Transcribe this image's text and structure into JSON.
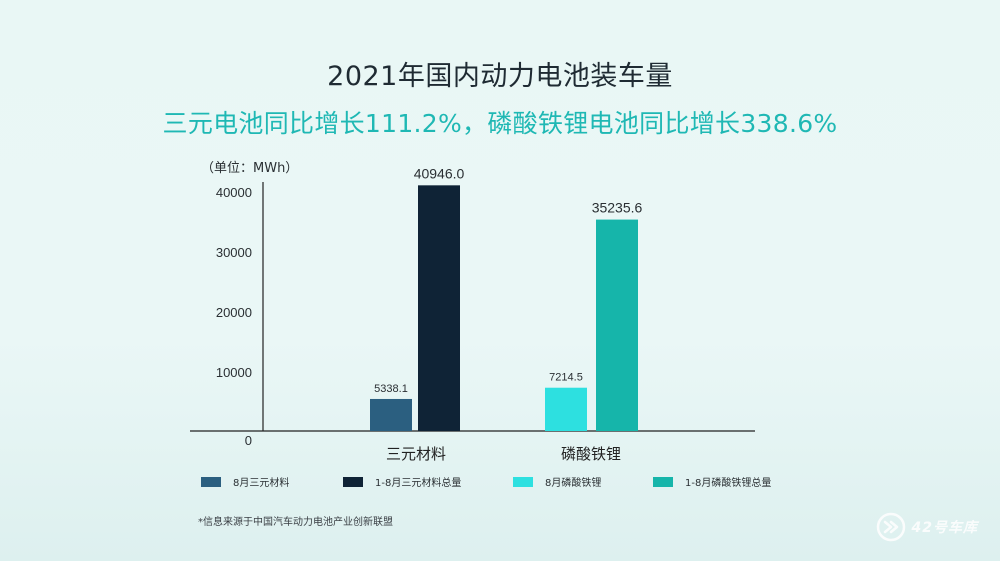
{
  "header": {
    "title": "2021年国内动力电池装车量",
    "subtitle": "三元电池同比增长111.2%，磷酸铁锂电池同比增长338.6%"
  },
  "unit_label": "（单位：MWh）",
  "source_note": "*信息来源于中国汽车动力电池产业创新联盟",
  "watermark": "42号车库",
  "chart_data": {
    "type": "bar",
    "title": "2021年国内动力电池装车量",
    "subtitle": "三元电池同比增长111.2%，磷酸铁锂电池同比增长338.6%",
    "ylabel": "（单位：MWh）",
    "xlabel": "",
    "ylim": [
      0,
      45000
    ],
    "yticks": [
      0,
      10000,
      20000,
      30000,
      40000
    ],
    "ytick_labels": [
      "0",
      "10000",
      "20000",
      "30000",
      "40000"
    ],
    "grid": false,
    "legend_position": "bottom",
    "categories": [
      "三元材料",
      "磷酸铁锂"
    ],
    "bars": [
      {
        "name": "8月三元材料",
        "category": "三元材料",
        "value": 5338.1,
        "label": "5338.1",
        "color": "#2b5f80"
      },
      {
        "name": "1-8月三元材料总量",
        "category": "三元材料",
        "value": 40946.0,
        "label": "40946.0",
        "color": "#0f2336"
      },
      {
        "name": "8月磷酸铁锂",
        "category": "磷酸铁锂",
        "value": 7214.5,
        "label": "7214.5",
        "color": "#2de0e0"
      },
      {
        "name": "1-8月磷酸铁锂总量",
        "category": "磷酸铁锂",
        "value": 35235.6,
        "label": "35235.6",
        "color": "#16b5aa"
      }
    ],
    "legend": [
      {
        "label": "8月三元材料",
        "color": "#2b5f80"
      },
      {
        "label": "1-8月三元材料总量",
        "color": "#0f2336"
      },
      {
        "label": "8月磷酸铁锂",
        "color": "#2de0e0"
      },
      {
        "label": "1-8月磷酸铁锂总量",
        "color": "#16b5aa"
      }
    ]
  }
}
